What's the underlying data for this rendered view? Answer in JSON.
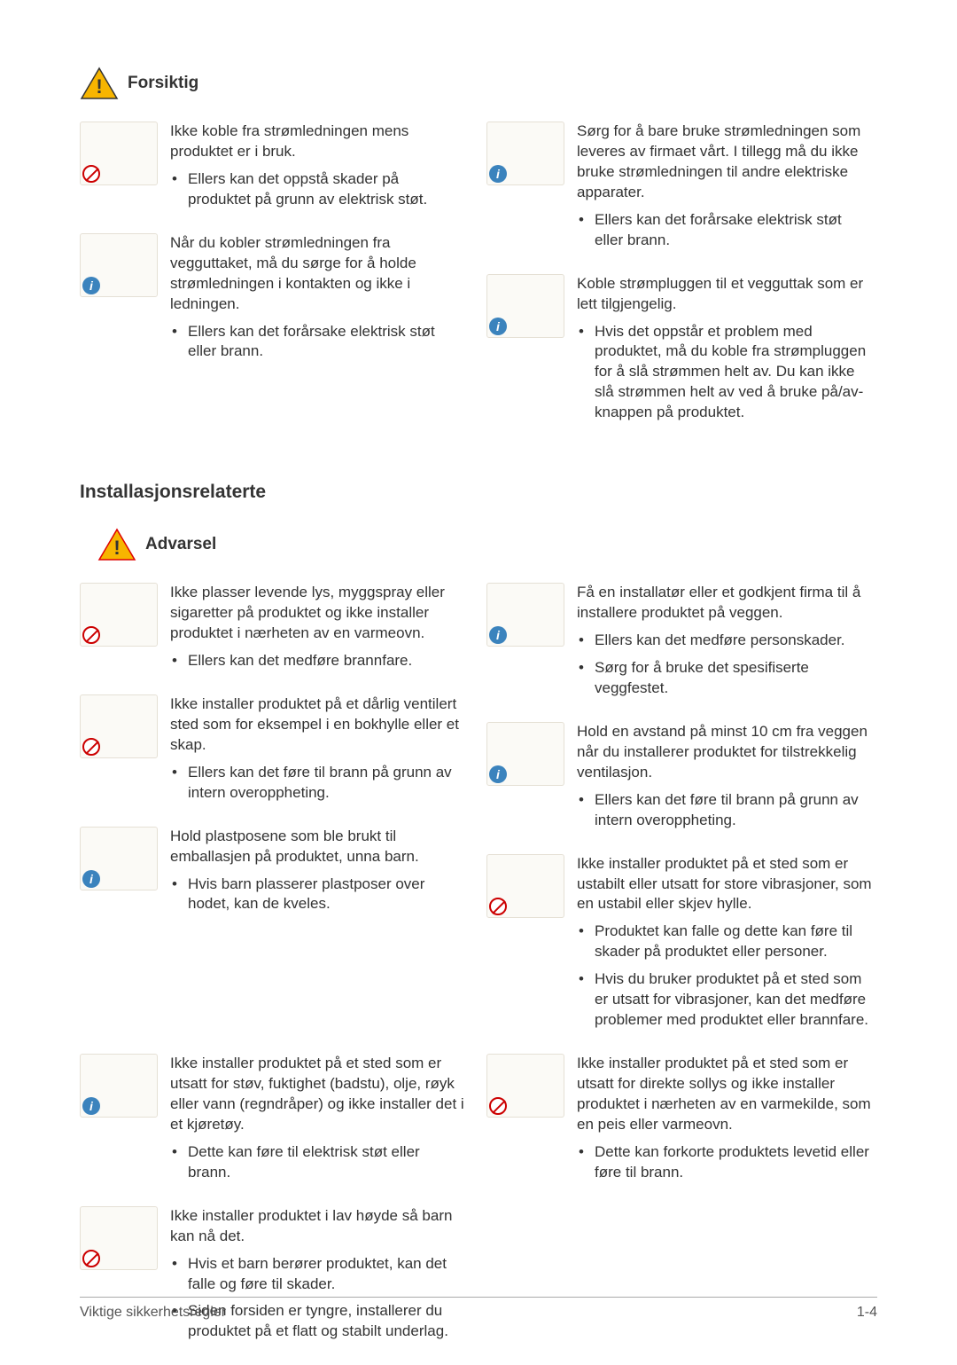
{
  "headings": {
    "forsiktig": "Forsiktig",
    "advarsel": "Advarsel",
    "installasjon": "Installasjonsrelaterte"
  },
  "footer": {
    "left": "Viktige sikkerhetsregler",
    "right": "1-4"
  },
  "icons": {
    "caution_color": "#f7b500",
    "warning_color": "#f7b500",
    "border": "#333333"
  },
  "forsiktig": {
    "left": [
      {
        "badge": "prohibit",
        "lead": "Ikke koble fra strømledningen mens produktet er i bruk.",
        "bullets": [
          "Ellers kan det oppstå skader på produktet på grunn av elektrisk støt."
        ]
      },
      {
        "badge": "info",
        "lead": "Når du kobler strømledningen fra vegguttaket, må du sørge for å holde strømledningen i kontakten og ikke i ledningen.",
        "bullets": [
          "Ellers kan det forårsake elektrisk støt eller brann."
        ]
      }
    ],
    "right": [
      {
        "badge": "info",
        "lead": "Sørg for å bare bruke strømledningen som leveres av firmaet vårt. I tillegg må du ikke bruke strømledningen til andre elektriske apparater.",
        "bullets": [
          "Ellers kan det forårsake elektrisk støt eller brann."
        ]
      },
      {
        "badge": "info",
        "lead": "Koble strømpluggen til et vegguttak som er lett tilgjengelig.",
        "bullets": [
          "Hvis det oppstår et problem med produktet, må du koble fra strømpluggen for å slå strømmen helt av. Du kan ikke slå strømmen helt av ved å bruke på/av-knappen på produktet."
        ]
      }
    ]
  },
  "advarsel": {
    "left": [
      {
        "badge": "prohibit",
        "lead": "Ikke plasser levende lys, myggspray eller sigaretter på produktet og ikke installer produktet i nærheten av en varmeovn.",
        "bullets": [
          "Ellers kan det medføre brannfare."
        ]
      },
      {
        "badge": "prohibit",
        "lead": "Ikke installer produktet på et dårlig ventilert sted som for eksempel i en bokhylle eller et skap.",
        "bullets": [
          "Ellers kan det føre til brann på grunn av intern overoppheting."
        ]
      },
      {
        "badge": "info",
        "lead": "Hold plastposene som ble brukt til emballasjen på produktet, unna barn.",
        "bullets": [
          "Hvis barn plasserer plastposer over hodet, kan de kveles."
        ]
      }
    ],
    "right": [
      {
        "badge": "info",
        "lead": "Få en installatør eller et godkjent firma til å installere produktet på veggen.",
        "bullets": [
          "Ellers kan det medføre personskader.",
          "Sørg for å bruke det spesifiserte veggfestet."
        ]
      },
      {
        "badge": "info",
        "lead": "Hold en avstand på minst 10 cm fra veggen når du installerer produktet for tilstrekkelig ventilasjon.",
        "bullets": [
          "Ellers kan det føre til brann på grunn av intern overoppheting."
        ]
      },
      {
        "badge": "prohibit",
        "lead": "Ikke installer produktet på et sted som er ustabilt eller utsatt for store vibrasjoner, som en ustabil eller skjev hylle.",
        "bullets": [
          "Produktet kan falle og dette kan føre til skader på produktet eller personer.",
          "Hvis du bruker produktet på et sted som er utsatt for vibrasjoner, kan det medføre problemer med produktet eller brannfare."
        ]
      }
    ],
    "left2": [
      {
        "badge": "info",
        "lead": "Ikke installer produktet på et sted som er utsatt for støv, fuktighet (badstu), olje, røyk eller vann (regndråper) og ikke installer det i et kjøretøy.",
        "bullets": [
          "Dette kan føre til elektrisk støt eller brann."
        ]
      },
      {
        "badge": "prohibit",
        "lead": "Ikke installer produktet i lav høyde så barn kan nå det.",
        "bullets": [
          "Hvis et barn berører produktet, kan det falle og føre til skader.",
          "Siden forsiden er tyngre, installerer du produktet på et flatt og stabilt underlag."
        ]
      }
    ],
    "right2": [
      {
        "badge": "prohibit",
        "lead": "Ikke installer produktet på et sted som er utsatt for direkte sollys og ikke installer produktet i nærheten av en varmekilde, som en peis eller varmeovn.",
        "bullets": [
          "Dette kan forkorte produktets levetid eller føre til brann."
        ]
      }
    ]
  }
}
